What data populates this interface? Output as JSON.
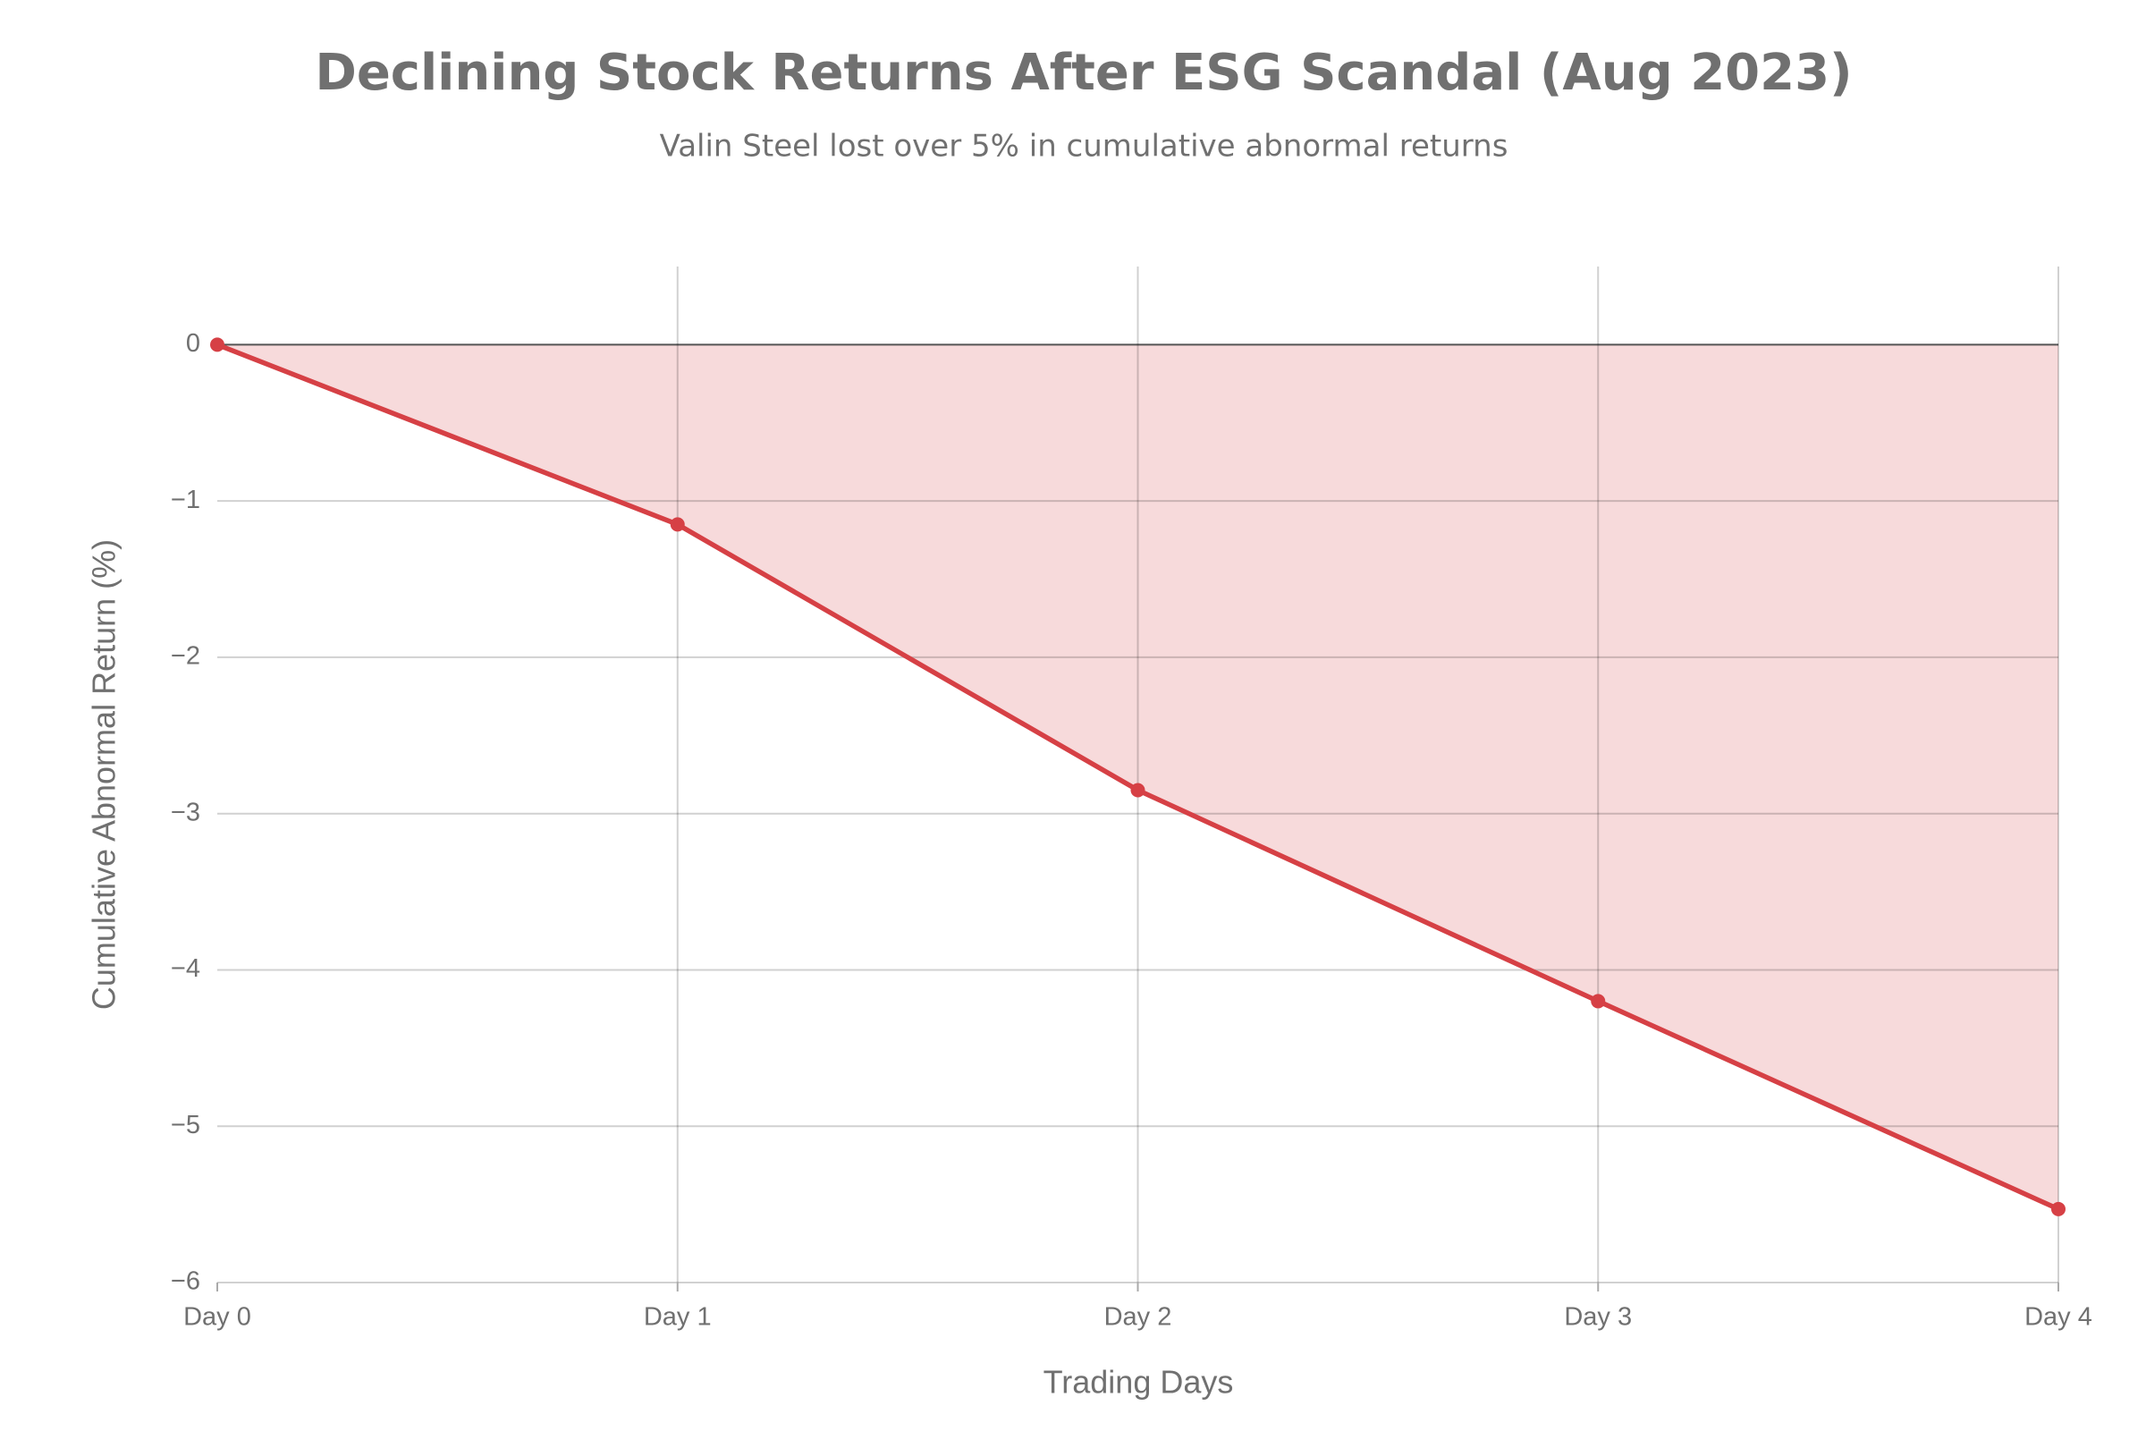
{
  "chart_data": {
    "type": "area",
    "title": "Declining Stock Returns After ESG Scandal (Aug 2023)",
    "subtitle": "Valin Steel lost over 5% in cumulative abnormal returns",
    "x_label": "Trading Days",
    "y_label": "Cumulative Abnormal Return (%)",
    "categories": [
      "Day 0",
      "Day 1",
      "Day 2",
      "Day 3",
      "Day 4"
    ],
    "values": [
      0,
      -1.15,
      -2.85,
      -4.2,
      -5.53
    ],
    "color": "#d64045",
    "fill_color": "#f7dadb",
    "ylim": [
      -6,
      0.5
    ],
    "yticks": [
      0,
      {
        "value": -1,
        "label": "−1"
      },
      {
        "value": -2,
        "label": "−2"
      },
      {
        "value": -3,
        "label": "−3"
      },
      {
        "value": -4,
        "label": "−4"
      },
      {
        "value": -5,
        "label": "−5"
      },
      {
        "value": -6,
        "label": "−6"
      }
    ],
    "grid": true
  }
}
